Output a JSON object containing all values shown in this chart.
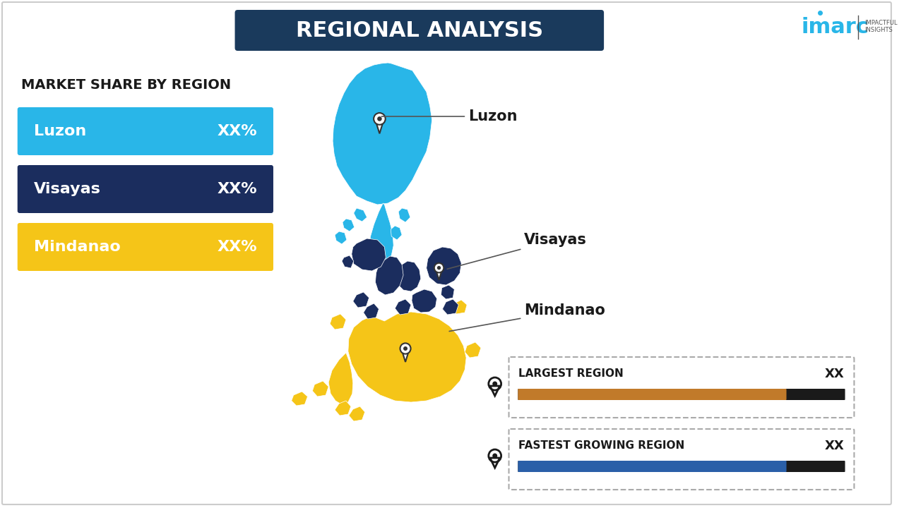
{
  "title": "REGIONAL ANALYSIS",
  "title_bg_color": "#1a3a5c",
  "title_text_color": "#ffffff",
  "background_color": "#ffffff",
  "subtitle": "MARKET SHARE BY REGION",
  "regions": [
    {
      "name": "Luzon",
      "value": "XX%",
      "color": "#29b6e8",
      "text_color": "#ffffff"
    },
    {
      "name": "Visayas",
      "value": "XX%",
      "color": "#1b2d5e",
      "text_color": "#ffffff"
    },
    {
      "name": "Mindanao",
      "value": "XX%",
      "color": "#f5c518",
      "text_color": "#ffffff"
    }
  ],
  "map_colors": {
    "Luzon": "#29b6e8",
    "Visayas": "#1b2d5e",
    "Mindanao": "#f5c518"
  },
  "info_boxes": [
    {
      "label": "LARGEST REGION",
      "value": "XX",
      "bar_color": "#c17a2a",
      "bar_dark": "#1a1a1a"
    },
    {
      "label": "FASTEST GROWING REGION",
      "value": "XX",
      "bar_color": "#2a5fa8",
      "bar_dark": "#1a1a1a"
    }
  ],
  "imarc_color": "#29b6e8",
  "region_label_color": "#1a1a1a"
}
